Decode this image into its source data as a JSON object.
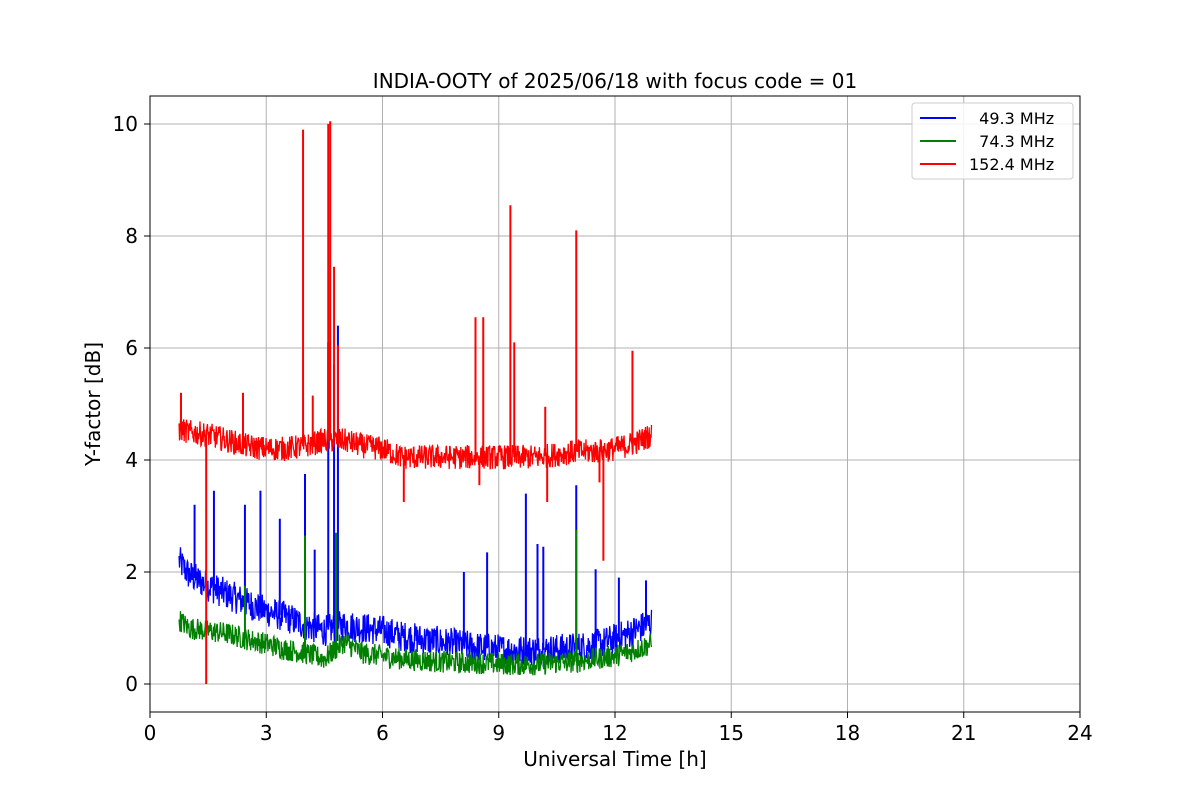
{
  "chart_data": {
    "type": "line",
    "title": "INDIA-OOTY of 2025/06/18 with focus code = 01",
    "xlabel": "Universal Time [h]",
    "ylabel": "Y-factor [dB]",
    "xlim": [
      0,
      24
    ],
    "ylim": [
      -0.5,
      10.5
    ],
    "xticks": [
      0,
      3,
      6,
      9,
      12,
      15,
      18,
      21,
      24
    ],
    "yticks": [
      0,
      2,
      4,
      6,
      8,
      10
    ],
    "grid": true,
    "legend_position": "top-right",
    "series": [
      {
        "name": "  49.3 MHz",
        "color": "#0000ff",
        "x": [
          0.75,
          1.0,
          1.5,
          2.0,
          2.5,
          3.0,
          3.5,
          4.0,
          4.5,
          5.0,
          5.5,
          6.0,
          6.5,
          7.0,
          7.5,
          8.0,
          8.5,
          9.0,
          9.5,
          10.0,
          10.5,
          11.0,
          11.5,
          12.0,
          12.5,
          12.95
        ],
        "values": [
          2.2,
          1.95,
          1.75,
          1.6,
          1.45,
          1.3,
          1.2,
          1.05,
          0.95,
          1.05,
          1.0,
          0.95,
          0.85,
          0.8,
          0.75,
          0.7,
          0.65,
          0.62,
          0.6,
          0.6,
          0.62,
          0.65,
          0.7,
          0.8,
          0.95,
          1.1
        ],
        "spikes": [
          [
            1.15,
            3.2
          ],
          [
            1.65,
            3.45
          ],
          [
            2.45,
            3.2
          ],
          [
            2.85,
            3.45
          ],
          [
            3.35,
            2.95
          ],
          [
            4.0,
            3.75
          ],
          [
            4.25,
            2.4
          ],
          [
            4.6,
            6.1
          ],
          [
            4.75,
            5.7
          ],
          [
            4.85,
            6.4
          ],
          [
            8.1,
            2.0
          ],
          [
            8.7,
            2.35
          ],
          [
            9.7,
            3.4
          ],
          [
            10.0,
            2.5
          ],
          [
            10.15,
            2.45
          ],
          [
            11.0,
            3.55
          ],
          [
            11.5,
            2.05
          ],
          [
            12.1,
            1.9
          ],
          [
            12.8,
            1.85
          ]
        ]
      },
      {
        "name": "  74.3 MHz",
        "color": "#008000",
        "x": [
          0.75,
          1.0,
          1.5,
          2.0,
          2.5,
          3.0,
          3.5,
          4.0,
          4.5,
          5.0,
          5.5,
          6.0,
          6.5,
          7.0,
          7.5,
          8.0,
          8.5,
          9.0,
          9.5,
          10.0,
          10.5,
          11.0,
          11.5,
          12.0,
          12.5,
          12.95
        ],
        "values": [
          1.15,
          1.0,
          0.95,
          0.9,
          0.8,
          0.72,
          0.62,
          0.55,
          0.45,
          0.75,
          0.55,
          0.5,
          0.45,
          0.42,
          0.4,
          0.38,
          0.38,
          0.36,
          0.35,
          0.35,
          0.38,
          0.4,
          0.45,
          0.5,
          0.6,
          0.72
        ],
        "spikes": [
          [
            2.45,
            1.75
          ],
          [
            4.0,
            2.65
          ],
          [
            4.8,
            2.7
          ],
          [
            11.0,
            2.75
          ]
        ]
      },
      {
        "name": "152.4 MHz",
        "color": "#ff0000",
        "x": [
          0.75,
          1.0,
          1.5,
          2.0,
          2.5,
          3.0,
          3.5,
          4.0,
          4.5,
          5.0,
          5.5,
          6.0,
          6.5,
          7.0,
          7.5,
          8.0,
          8.5,
          9.0,
          9.5,
          10.0,
          10.5,
          11.0,
          11.5,
          12.0,
          12.5,
          12.95
        ],
        "values": [
          4.55,
          4.5,
          4.45,
          4.35,
          4.25,
          4.2,
          4.2,
          4.25,
          4.35,
          4.35,
          4.25,
          4.2,
          4.05,
          4.05,
          4.05,
          4.05,
          4.05,
          4.05,
          4.05,
          4.05,
          4.1,
          4.15,
          4.15,
          4.2,
          4.3,
          4.45
        ],
        "spikes": [
          [
            0.8,
            5.2
          ],
          [
            2.4,
            5.2
          ],
          [
            3.95,
            9.9
          ],
          [
            4.2,
            5.15
          ],
          [
            4.6,
            10.0
          ],
          [
            4.65,
            10.05
          ],
          [
            4.75,
            7.45
          ],
          [
            4.85,
            6.05
          ],
          [
            8.4,
            6.55
          ],
          [
            8.6,
            6.55
          ],
          [
            9.3,
            8.55
          ],
          [
            9.4,
            6.1
          ],
          [
            10.2,
            4.95
          ],
          [
            11.0,
            8.1
          ],
          [
            12.45,
            5.95
          ]
        ],
        "dips": [
          [
            1.45,
            0.0
          ],
          [
            6.55,
            3.25
          ],
          [
            10.25,
            3.25
          ],
          [
            11.7,
            2.2
          ],
          [
            8.5,
            3.55
          ],
          [
            11.6,
            3.6
          ]
        ]
      }
    ]
  }
}
